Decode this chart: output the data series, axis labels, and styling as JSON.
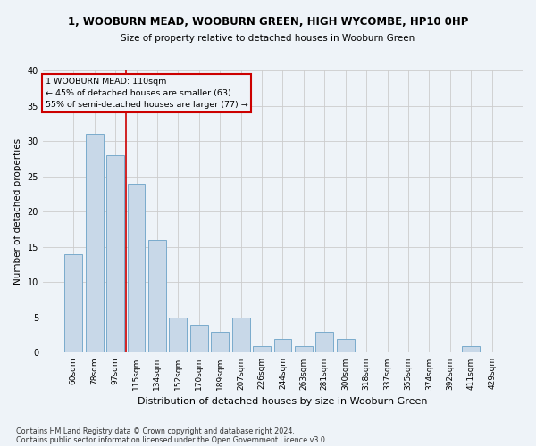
{
  "title": "1, WOOBURN MEAD, WOOBURN GREEN, HIGH WYCOMBE, HP10 0HP",
  "subtitle": "Size of property relative to detached houses in Wooburn Green",
  "xlabel": "Distribution of detached houses by size in Wooburn Green",
  "ylabel": "Number of detached properties",
  "categories": [
    "60sqm",
    "78sqm",
    "97sqm",
    "115sqm",
    "134sqm",
    "152sqm",
    "170sqm",
    "189sqm",
    "207sqm",
    "226sqm",
    "244sqm",
    "263sqm",
    "281sqm",
    "300sqm",
    "318sqm",
    "337sqm",
    "355sqm",
    "374sqm",
    "392sqm",
    "411sqm",
    "429sqm"
  ],
  "values": [
    14,
    31,
    28,
    24,
    16,
    5,
    4,
    3,
    5,
    1,
    2,
    1,
    3,
    2,
    0,
    0,
    0,
    0,
    0,
    1,
    0
  ],
  "bar_color": "#c8d8e8",
  "bar_edge_color": "#7aabcc",
  "grid_color": "#cccccc",
  "background_color": "#eef3f8",
  "vline_x_index": 2.5,
  "annotation_lines": [
    "1 WOOBURN MEAD: 110sqm",
    "← 45% of detached houses are smaller (63)",
    "55% of semi-detached houses are larger (77) →"
  ],
  "annotation_box_color": "#cc0000",
  "ylim": [
    0,
    40
  ],
  "yticks": [
    0,
    5,
    10,
    15,
    20,
    25,
    30,
    35,
    40
  ],
  "footer_line1": "Contains HM Land Registry data © Crown copyright and database right 2024.",
  "footer_line2": "Contains public sector information licensed under the Open Government Licence v3.0."
}
